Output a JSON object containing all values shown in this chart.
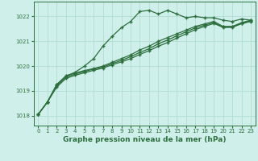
{
  "background_color": "#cff0ea",
  "grid_color": "#b0ddd5",
  "line_color": "#2d6e3e",
  "title": "Graphe pression niveau de la mer (hPa)",
  "xlim": [
    -0.5,
    23.5
  ],
  "ylim": [
    1017.6,
    1022.6
  ],
  "yticks": [
    1018,
    1019,
    1020,
    1021,
    1022
  ],
  "xticks": [
    0,
    1,
    2,
    3,
    4,
    5,
    6,
    7,
    8,
    9,
    10,
    11,
    12,
    13,
    14,
    15,
    16,
    17,
    18,
    19,
    20,
    21,
    22,
    23
  ],
  "series1_x": [
    0,
    1,
    2,
    3,
    4,
    5,
    6,
    7,
    8,
    9,
    10,
    11,
    12,
    13,
    14,
    15,
    16,
    17,
    18,
    19,
    20,
    21,
    22,
    23
  ],
  "series1_y": [
    1018.05,
    1018.55,
    1019.25,
    1019.6,
    1019.75,
    1020.0,
    1020.3,
    1020.8,
    1021.2,
    1021.55,
    1021.8,
    1022.2,
    1022.25,
    1022.1,
    1022.25,
    1022.1,
    1021.95,
    1022.0,
    1021.95,
    1021.95,
    1021.85,
    1021.8,
    1021.9,
    1021.85
  ],
  "series2_x": [
    0,
    1,
    2,
    3,
    4,
    5,
    6,
    7,
    8,
    9,
    10,
    11,
    12,
    13,
    14,
    15,
    16,
    17,
    18,
    19,
    20,
    21,
    22,
    23
  ],
  "series2_y": [
    1018.05,
    1018.55,
    1019.25,
    1019.6,
    1019.72,
    1019.82,
    1019.9,
    1020.0,
    1020.15,
    1020.3,
    1020.45,
    1020.65,
    1020.8,
    1021.0,
    1021.15,
    1021.3,
    1021.45,
    1021.6,
    1021.7,
    1021.8,
    1021.6,
    1021.6,
    1021.75,
    1021.85
  ],
  "series3_x": [
    0,
    1,
    2,
    3,
    4,
    5,
    6,
    7,
    8,
    9,
    10,
    11,
    12,
    13,
    14,
    15,
    16,
    17,
    18,
    19,
    20,
    21,
    22,
    23
  ],
  "series3_y": [
    1018.05,
    1018.55,
    1019.2,
    1019.55,
    1019.68,
    1019.78,
    1019.88,
    1019.96,
    1020.1,
    1020.23,
    1020.38,
    1020.55,
    1020.7,
    1020.9,
    1021.05,
    1021.22,
    1021.38,
    1021.54,
    1021.65,
    1021.75,
    1021.58,
    1021.58,
    1021.73,
    1021.82
  ],
  "series4_x": [
    0,
    1,
    2,
    3,
    4,
    5,
    6,
    7,
    8,
    9,
    10,
    11,
    12,
    13,
    14,
    15,
    16,
    17,
    18,
    19,
    20,
    21,
    22,
    23
  ],
  "series4_y": [
    1018.05,
    1018.55,
    1019.15,
    1019.5,
    1019.63,
    1019.73,
    1019.83,
    1019.92,
    1020.05,
    1020.17,
    1020.3,
    1020.47,
    1020.62,
    1020.8,
    1020.95,
    1021.13,
    1021.3,
    1021.47,
    1021.6,
    1021.72,
    1021.56,
    1021.56,
    1021.71,
    1021.8
  ]
}
